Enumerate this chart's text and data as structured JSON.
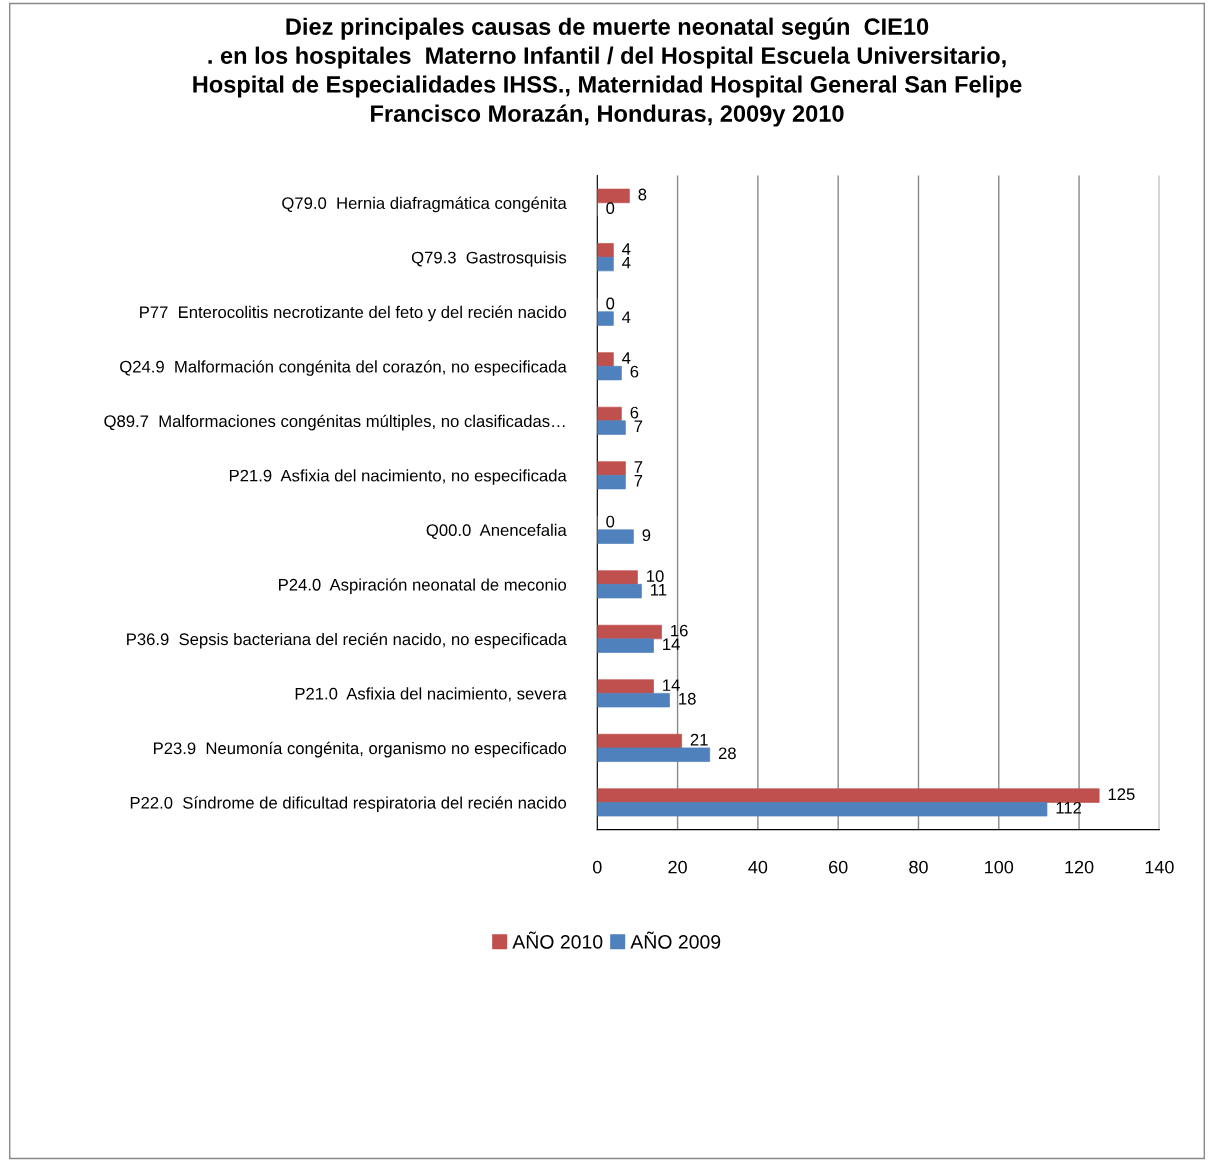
{
  "chart_data": {
    "type": "bar",
    "orientation": "horizontal",
    "title": "Diez principales causas de muerte neonatal según  CIE10\n. en los hospitales  Materno Infantil / del Hospital Escuela Universitario,\nHospital de Especialidades IHSS., Maternidad Hospital General San Felipe\nFrancisco Morazán, Honduras, 2009y 2010",
    "categories": [
      "Q79.0  Hernia diafragmática congénita",
      "Q79.3  Gastrosquisis",
      "P77  Enterocolitis necrotizante del feto y del recién nacido",
      "Q24.9  Malformación congénita del corazón, no especificada",
      "Q89.7  Malformaciones congénitas múltiples, no clasificadas…",
      "P21.9  Asfixia del nacimiento, no especificada",
      "Q00.0  Anencefalia",
      "P24.0  Aspiración neonatal de meconio",
      "P36.9  Sepsis bacteriana del recién nacido, no especificada",
      "P21.0  Asfixia del nacimiento, severa",
      "P23.9  Neumonía congénita, organismo no especificado",
      "P22.0  Síndrome de dificultad respiratoria del recién nacido"
    ],
    "series": [
      {
        "name": "AÑO 2010",
        "color": "#c0504d",
        "values": [
          8,
          4,
          0,
          4,
          6,
          7,
          0,
          10,
          16,
          14,
          21,
          125
        ]
      },
      {
        "name": "AÑO 2009",
        "color": "#4f81bd",
        "values": [
          0,
          4,
          4,
          6,
          7,
          7,
          9,
          11,
          14,
          18,
          28,
          112
        ]
      }
    ],
    "xlim": [
      0,
      140
    ],
    "xticks": [
      0,
      20,
      40,
      60,
      80,
      100,
      120,
      140
    ],
    "grid": "x",
    "legend": "bottom",
    "data_labels": true
  }
}
